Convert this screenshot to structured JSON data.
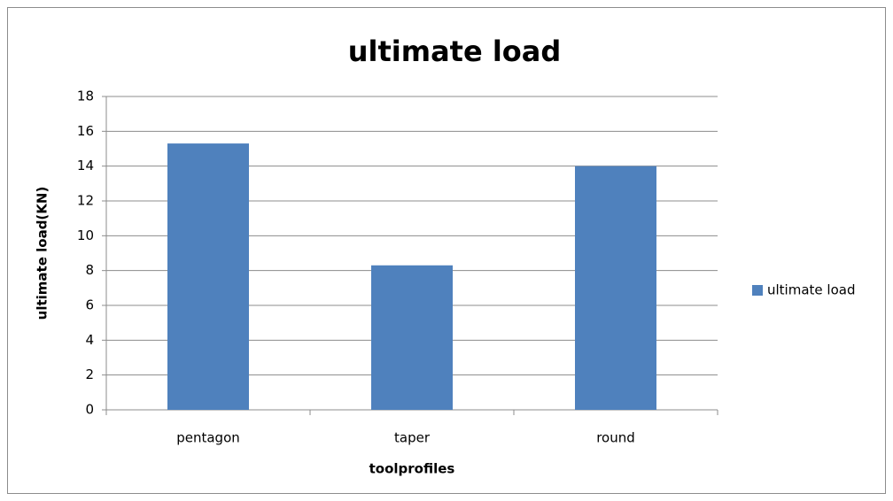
{
  "chart_data": {
    "type": "bar",
    "title": "ultimate load",
    "x_label": "toolprofiles",
    "y_label": "ultimate load(KN)",
    "categories": [
      "pentagon",
      "taper",
      "round"
    ],
    "series": [
      {
        "name": "ultimate load",
        "color": "#4f81bd",
        "values": [
          15.3,
          8.3,
          14.0
        ]
      }
    ],
    "ylim": [
      0,
      18
    ],
    "yticks": [
      0,
      2,
      4,
      6,
      8,
      10,
      12,
      14,
      16,
      18
    ],
    "grid": true,
    "legend": "right"
  }
}
